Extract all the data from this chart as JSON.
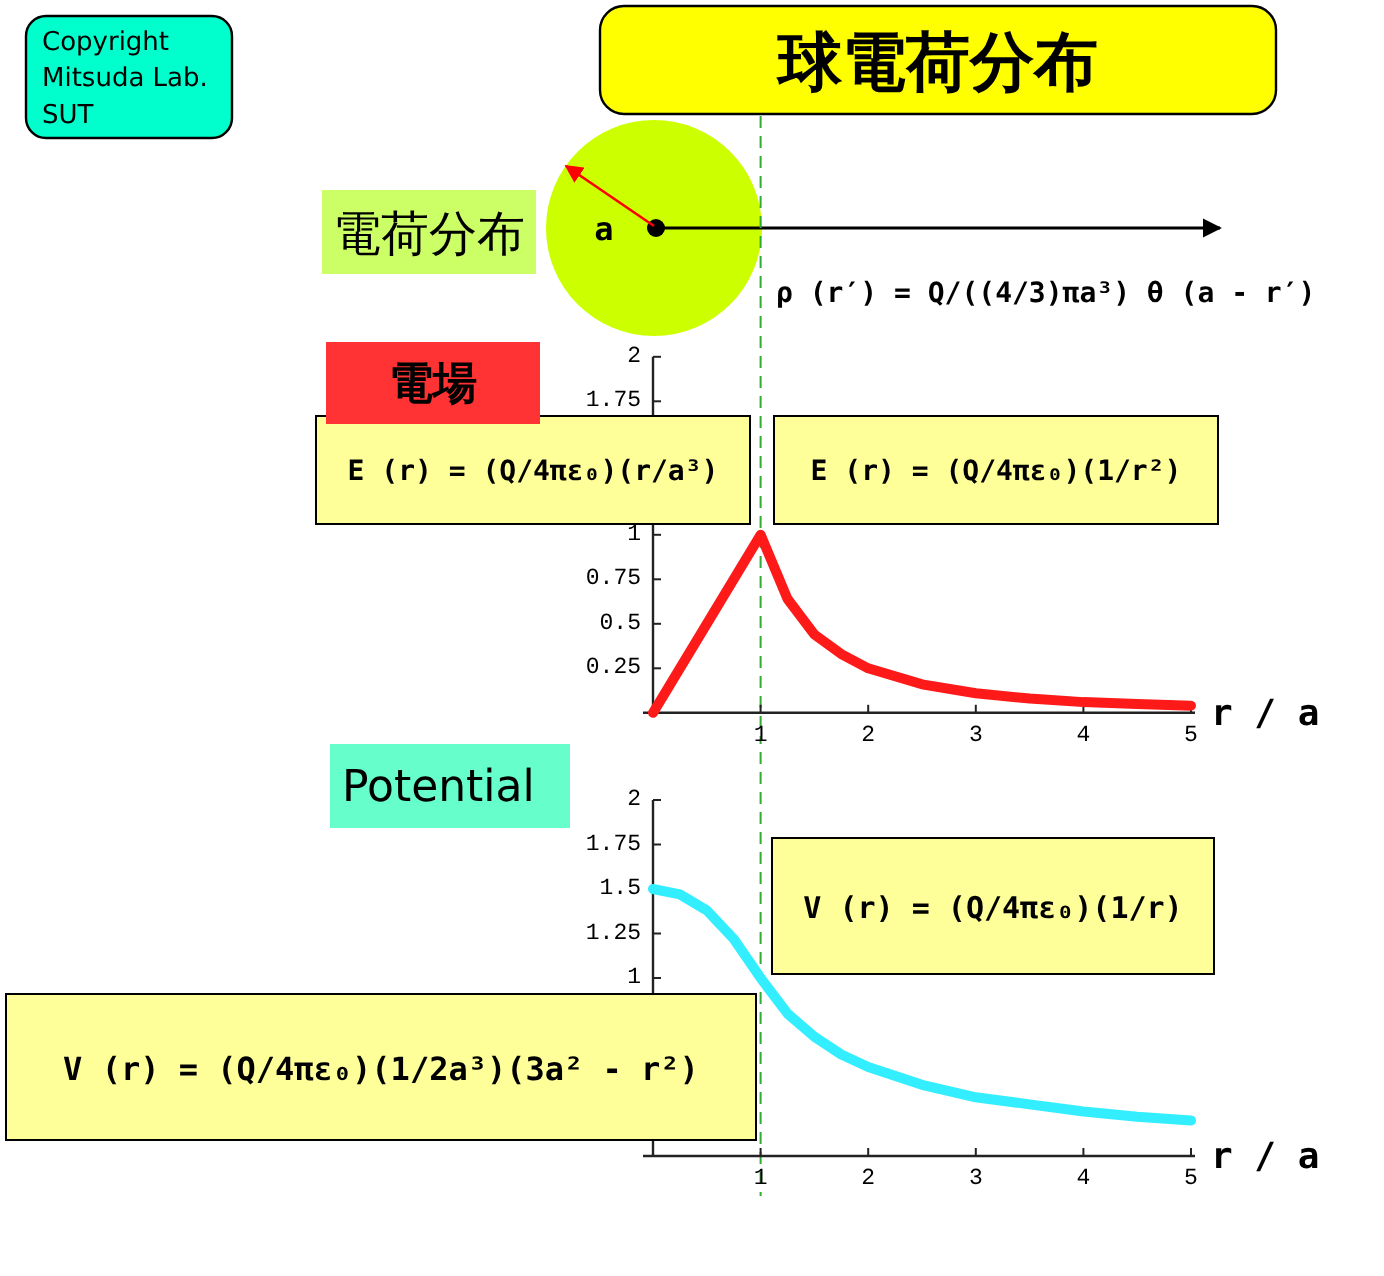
{
  "chart_data": [
    {
      "type": "other",
      "title": "球電荷分布",
      "annotations": [
        "Copyright Mitsuda Lab. SUT",
        "電荷分布",
        "a",
        "ρ (r′) = Q/((4/3)πa³) θ (a - r′)"
      ]
    },
    {
      "type": "line",
      "title": "電場",
      "xlabel": "r / a",
      "xlim": [
        0,
        5
      ],
      "xticks": [
        1,
        2,
        3,
        4,
        5
      ],
      "ylim": [
        0,
        2
      ],
      "yticks": [
        0.25,
        0.5,
        0.75,
        1,
        1.75,
        2
      ],
      "series": [
        {
          "color": "#ff1a1a",
          "x": [
            0,
            0.5,
            1,
            1.25,
            1.5,
            1.75,
            2,
            2.5,
            3,
            3.5,
            4,
            4.5,
            5
          ],
          "values": [
            0,
            0.5,
            1,
            0.64,
            0.44,
            0.33,
            0.25,
            0.16,
            0.11,
            0.08,
            0.06,
            0.05,
            0.04
          ]
        }
      ],
      "ref_lines": [
        {
          "axis": "x",
          "value": 1,
          "color": "#33aa33",
          "line_style": "dashed"
        }
      ],
      "annotations": [
        "E (r) = (Q/4πε₀)(r/a³)",
        "E (r) = (Q/4πε₀)(1/r²)"
      ]
    },
    {
      "type": "line",
      "title": "Potential",
      "xlabel": "r / a",
      "xlim": [
        0,
        5
      ],
      "xticks": [
        1,
        2,
        3,
        4,
        5
      ],
      "ylim": [
        0,
        2
      ],
      "yticks": [
        1,
        1.25,
        1.5,
        1.75,
        2
      ],
      "series": [
        {
          "color": "#33eeff",
          "x": [
            0,
            0.25,
            0.5,
            0.75,
            1,
            1.25,
            1.5,
            1.75,
            2,
            2.5,
            3,
            3.5,
            4,
            4.5,
            5
          ],
          "values": [
            1.5,
            1.47,
            1.38,
            1.22,
            1,
            0.8,
            0.67,
            0.57,
            0.5,
            0.4,
            0.33,
            0.29,
            0.25,
            0.22,
            0.2
          ]
        }
      ],
      "ref_lines": [
        {
          "axis": "x",
          "value": 1,
          "color": "#33aa33",
          "line_style": "dashed"
        }
      ],
      "annotations": [
        "V (r) = (Q/4πε₀)(1/r)",
        "V (r) = (Q/4πε₀)(1/2a³)(3a² - r²)"
      ]
    }
  ]
}
